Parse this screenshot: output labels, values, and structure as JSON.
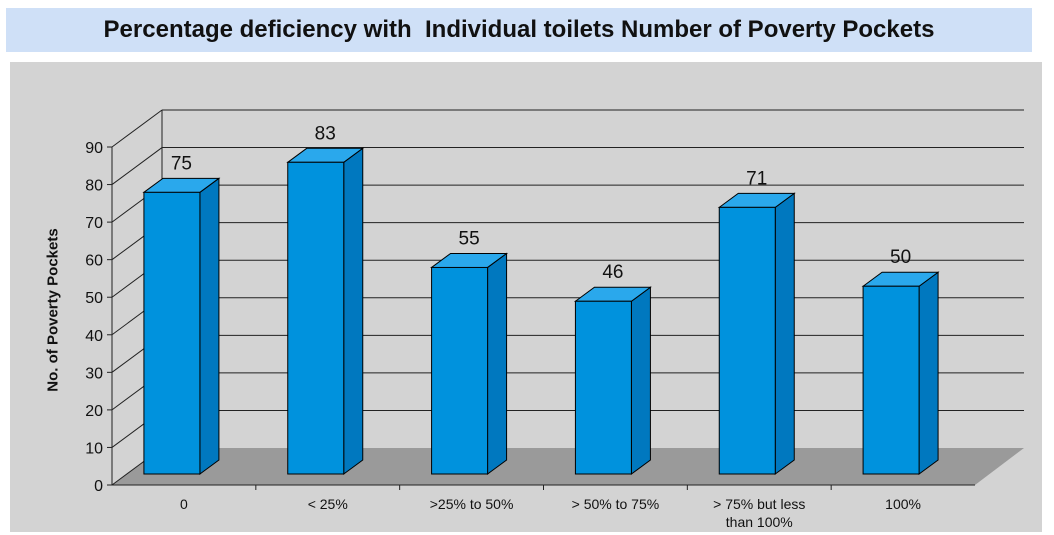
{
  "chart_data": {
    "type": "bar",
    "title": "Percentage deficiency with  Individual toilets Number of Poverty Pockets",
    "xlabel": "",
    "ylabel": "No. of Poverty Pockets",
    "categories": [
      "0",
      "< 25%",
      ">25% to 50%",
      "> 50% to 75%",
      "> 75% but less than 100%",
      "100%"
    ],
    "category_lines": [
      [
        "0"
      ],
      [
        "< 25%"
      ],
      [
        ">25% to 50%"
      ],
      [
        "> 50% to 75%"
      ],
      [
        "> 75% but less",
        "than 100%"
      ],
      [
        "100%"
      ]
    ],
    "values": [
      75,
      83,
      55,
      46,
      71,
      50
    ],
    "data_labels": [
      "75",
      "83",
      "55",
      "46",
      "71",
      "50"
    ],
    "ylim": [
      0,
      90
    ],
    "yticks": [
      0,
      10,
      20,
      30,
      40,
      50,
      60,
      70,
      80,
      90
    ],
    "grid": true,
    "style": "3d-column",
    "colors": {
      "bar_front": "#0092dd",
      "bar_top": "#2aa8ec",
      "bar_side": "#0078bf",
      "floor": "#9a9a9a",
      "panel": "#d3d3d3",
      "title_band": "#cfe0f7"
    }
  }
}
